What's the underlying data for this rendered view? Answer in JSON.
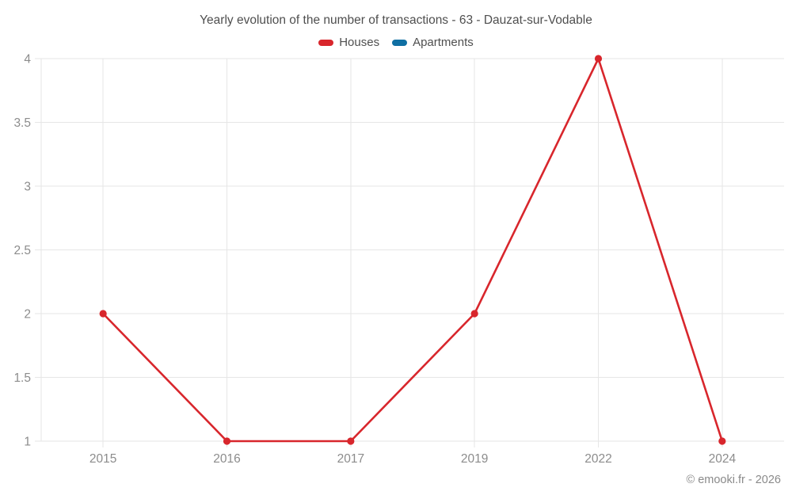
{
  "title": "Yearly evolution of the number of transactions - 63 - Dauzat-sur-Vodable",
  "footer": {
    "copyright": "© emooki.fr - 2026"
  },
  "colors": {
    "houses": "#d8262c",
    "apartments": "#0f6fa3",
    "grid": "#e6e6e6",
    "axis_label": "#8c8c8c",
    "title_text": "#4f4f4f",
    "background": "#ffffff"
  },
  "legend": {
    "items": [
      {
        "label": "Houses",
        "color": "#d8262c"
      },
      {
        "label": "Apartments",
        "color": "#0f6fa3"
      }
    ]
  },
  "chart_data": {
    "type": "line",
    "title": "Yearly evolution of the number of transactions - 63 - Dauzat-sur-Vodable",
    "categories": [
      "2015",
      "2016",
      "2017",
      "2019",
      "2022",
      "2024"
    ],
    "series": [
      {
        "name": "Houses",
        "color": "#d8262c",
        "values": [
          2,
          1,
          1,
          2,
          4,
          1
        ]
      },
      {
        "name": "Apartments",
        "color": "#0f6fa3",
        "values": []
      }
    ],
    "xlabel": "",
    "ylabel": "",
    "ylim": [
      1,
      4
    ],
    "yticks": [
      1,
      1.5,
      2,
      2.5,
      3,
      3.5,
      4
    ],
    "grid": true,
    "legend_position": "top"
  }
}
